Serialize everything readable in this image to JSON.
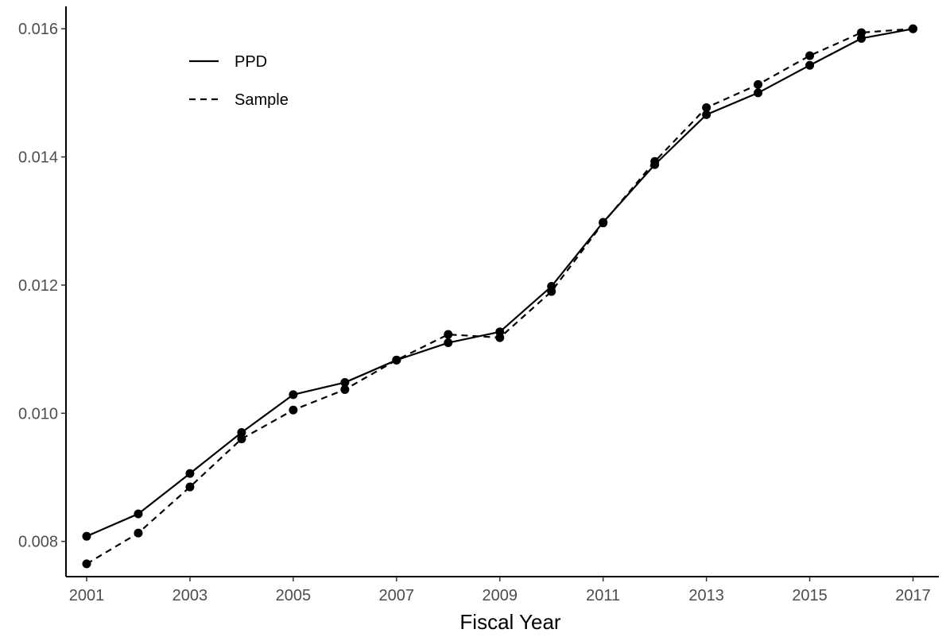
{
  "chart_data": {
    "type": "line",
    "title": "",
    "xlabel": "Fiscal Year",
    "ylabel": "",
    "x": [
      2001,
      2002,
      2003,
      2004,
      2005,
      2006,
      2007,
      2008,
      2009,
      2010,
      2011,
      2012,
      2013,
      2014,
      2015,
      2016,
      2017
    ],
    "xticks": [
      2001,
      2003,
      2005,
      2007,
      2009,
      2011,
      2013,
      2015,
      2017
    ],
    "yticks": [
      0.008,
      0.01,
      0.012,
      0.014,
      0.016
    ],
    "ytick_labels": [
      "0.008",
      "0.010",
      "0.012",
      "0.014",
      "0.016"
    ],
    "xlim": [
      2000.6,
      2017.5
    ],
    "ylim": [
      0.00745,
      0.01635
    ],
    "grid": false,
    "legend_position": "top-left",
    "series": [
      {
        "name": "PPD",
        "line_style": "solid",
        "color": "#000000",
        "values": [
          0.00808,
          0.00843,
          0.00906,
          0.0097,
          0.01029,
          0.01048,
          0.01083,
          0.0111,
          0.01127,
          0.01198,
          0.01298,
          0.01388,
          0.01466,
          0.015,
          0.01543,
          0.01585,
          0.016
        ]
      },
      {
        "name": "Sample",
        "line_style": "dashed",
        "color": "#000000",
        "values": [
          0.00765,
          0.00813,
          0.00885,
          0.0096,
          0.01005,
          0.01037,
          0.01083,
          0.01123,
          0.01118,
          0.0119,
          0.01297,
          0.01393,
          0.01477,
          0.01513,
          0.01558,
          0.01594,
          0.016
        ]
      }
    ]
  }
}
